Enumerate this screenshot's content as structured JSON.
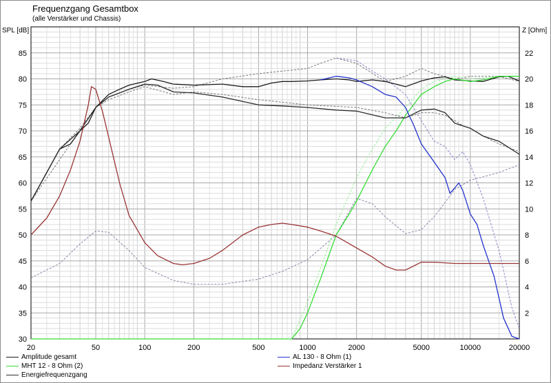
{
  "chart_data": {
    "type": "line",
    "title": "Frequenzgang Gesamtbox",
    "subtitle": "(alle Verstärker und Chassis)",
    "ylabel_left": "SPL [dB]",
    "ylabel_right": "Z [Ohm]",
    "xscale": "log",
    "xlim": [
      20,
      20000
    ],
    "ylim_left": [
      30,
      90
    ],
    "ylim_right": [
      0,
      24
    ],
    "x_ticks": [
      20,
      50,
      100,
      200,
      500,
      1000,
      2000,
      5000,
      10000,
      20000
    ],
    "y_ticks_left": [
      30,
      35,
      40,
      45,
      50,
      55,
      60,
      65,
      70,
      75,
      80,
      85
    ],
    "y_ticks_right": [
      2,
      4,
      6,
      8,
      10,
      12,
      14,
      16,
      18,
      20,
      22
    ],
    "grid": true,
    "legend_position": "bottom",
    "series": [
      {
        "name": "Amplitude gesamt",
        "axis": "left",
        "color": "#1a1a1a",
        "x": [
          20,
          25,
          30,
          35,
          40,
          45,
          50,
          60,
          70,
          80,
          100,
          110,
          130,
          150,
          200,
          300,
          400,
          500,
          600,
          700,
          800,
          1000,
          1200,
          1500,
          1800,
          2000,
          2500,
          3000,
          4000,
          5000,
          6000,
          7000,
          8000,
          10000,
          12000,
          15000,
          17000,
          20000
        ],
        "y": [
          56.5,
          62,
          66.5,
          67.5,
          70,
          71.5,
          74.5,
          77,
          78,
          78.8,
          79.5,
          80,
          79.5,
          79,
          78.8,
          79,
          78.5,
          78.5,
          79.2,
          79.5,
          79.5,
          79.6,
          79.8,
          80,
          79.8,
          79.5,
          79.8,
          79.5,
          78.5,
          79.6,
          80.2,
          80.4,
          79.8,
          79.6,
          79.5,
          80.4,
          80.5,
          79.6
        ]
      },
      {
        "name": "MHT 12 - 8 Ohm (2)",
        "axis": "left",
        "color": "#33dd33",
        "x": [
          20,
          800,
          900,
          1000,
          1200,
          1500,
          1800,
          2000,
          2500,
          3000,
          3500,
          4000,
          5000,
          6000,
          7000,
          8000,
          10000,
          12000,
          15000,
          20000
        ],
        "y": [
          30,
          30,
          32,
          35,
          41.5,
          50,
          54,
          56.5,
          62.5,
          67,
          70,
          73,
          77,
          78.5,
          79.5,
          80,
          79.5,
          79.8,
          80.5,
          80.5
        ]
      },
      {
        "name": "Energiefrequenzgang",
        "axis": "left",
        "color": "#2a2a2a",
        "x": [
          20,
          30,
          40,
          50,
          60,
          80,
          100,
          120,
          150,
          200,
          300,
          500,
          700,
          1000,
          1500,
          2000,
          3000,
          4000,
          5000,
          6000,
          7000,
          8000,
          10000,
          12000,
          15000,
          20000
        ],
        "y": [
          56.5,
          66.5,
          70,
          74.5,
          76.5,
          78,
          79,
          78.8,
          77.5,
          77.3,
          76.5,
          75,
          74.8,
          74.5,
          74,
          73.8,
          72.5,
          72.5,
          74,
          74.2,
          73.5,
          71.5,
          70.5,
          69,
          68,
          65.5
        ]
      },
      {
        "name": "AL 130 - 8 Ohm (1)",
        "axis": "left",
        "color": "#2233cc",
        "x": [
          1200,
          1500,
          1800,
          2000,
          2500,
          3000,
          3500,
          4000,
          4500,
          5000,
          6000,
          7000,
          7500,
          8000,
          8500,
          9000,
          10000,
          11000,
          12000,
          14000,
          16000,
          18000,
          20000
        ],
        "y": [
          79.8,
          80.5,
          80.2,
          79.8,
          78.5,
          77,
          76.5,
          74.5,
          71,
          67.5,
          64,
          61,
          58,
          59,
          60,
          58.5,
          54,
          52,
          48,
          42,
          34,
          30.5,
          30
        ]
      },
      {
        "name": "Impedanz Verstärker 1",
        "axis": "right",
        "color": "#993333",
        "x": [
          20,
          25,
          30,
          35,
          40,
          45,
          47,
          50,
          55,
          60,
          70,
          80,
          100,
          120,
          150,
          170,
          200,
          250,
          300,
          400,
          500,
          600,
          700,
          800,
          1000,
          1200,
          1500,
          2000,
          2500,
          3000,
          3500,
          4000,
          5000,
          6000,
          8000,
          10000,
          15000,
          20000
        ],
        "y": [
          8,
          9.3,
          11,
          13,
          15.2,
          18,
          19.4,
          19.2,
          17.5,
          15.5,
          12,
          9.5,
          7.4,
          6.4,
          5.8,
          5.7,
          5.8,
          6.2,
          6.8,
          8,
          8.6,
          8.8,
          8.9,
          8.8,
          8.6,
          8.3,
          7.9,
          7,
          6.3,
          5.6,
          5.3,
          5.3,
          5.9,
          5.9,
          5.8,
          5.8,
          5.8,
          5.8
        ]
      },
      {
        "name": "",
        "axis": "right",
        "color": "#8888aa",
        "dashed": true,
        "x": [
          20,
          30,
          40,
          50,
          60,
          80,
          100,
          150,
          200,
          300,
          500,
          700,
          1000,
          1500,
          2000,
          2500,
          3000,
          4000,
          5000,
          6000,
          7000,
          8000,
          10000,
          15000,
          20000
        ],
        "y": [
          4.7,
          5.8,
          7.3,
          8.3,
          8.2,
          6.8,
          5.5,
          4.5,
          4.2,
          4.2,
          4.6,
          5.2,
          6.1,
          8,
          10.8,
          10.4,
          9.4,
          8.1,
          8.4,
          9.4,
          10.5,
          11.5,
          12.2,
          12.8,
          13.4
        ]
      },
      {
        "name": "",
        "axis": "left",
        "color": "#777777",
        "dashed": true,
        "x": [
          20,
          30,
          40,
          50,
          60,
          80,
          100,
          150,
          200,
          300,
          500,
          700,
          1000,
          1200,
          1500,
          2000,
          3000,
          4000,
          5000,
          6000,
          8000,
          10000,
          15000,
          20000
        ],
        "y": [
          56.5,
          66.5,
          70.5,
          74.5,
          76.5,
          78,
          78.8,
          78.2,
          78.5,
          80,
          81,
          81.5,
          82,
          83,
          84,
          83,
          79.5,
          80.5,
          82,
          81,
          80,
          80.5,
          80.5,
          79.5
        ]
      },
      {
        "name": "",
        "axis": "left",
        "color": "#777777",
        "dashed": true,
        "x": [
          20,
          50,
          60,
          80,
          100,
          150,
          200,
          300,
          500,
          1000,
          2000,
          3000,
          4000,
          5000,
          6000,
          7000,
          8000,
          9000,
          10000,
          12000,
          15000,
          20000
        ],
        "y": [
          56.5,
          74.5,
          76,
          77.5,
          78.5,
          77,
          77.5,
          77,
          76,
          75,
          74.5,
          73.5,
          72.5,
          73.5,
          73.5,
          73,
          72,
          71,
          70.5,
          69,
          67.5,
          66
        ]
      },
      {
        "name": "",
        "axis": "left",
        "color": "#8888cc",
        "dashed": true,
        "x": [
          1500,
          2000,
          2500,
          3000,
          4000,
          5000,
          6000,
          7000,
          8000,
          9000,
          10000,
          12000,
          15000,
          18000,
          20000
        ],
        "y": [
          84,
          83.5,
          81.5,
          80,
          77,
          72,
          68,
          67,
          64.5,
          66,
          63.5,
          57,
          47,
          36,
          32
        ]
      },
      {
        "name": "",
        "axis": "left",
        "color": "#99ee99",
        "dashed": true,
        "x": [
          800,
          1000,
          1200,
          1500,
          2000,
          2500,
          3000,
          4000,
          5000,
          6000,
          8000,
          10000,
          15000,
          20000
        ],
        "y": [
          30,
          37,
          43.5,
          52,
          61,
          66.5,
          70.5,
          74.5,
          78,
          79.5,
          80.5,
          80,
          80.5,
          80.5
        ]
      }
    ]
  }
}
